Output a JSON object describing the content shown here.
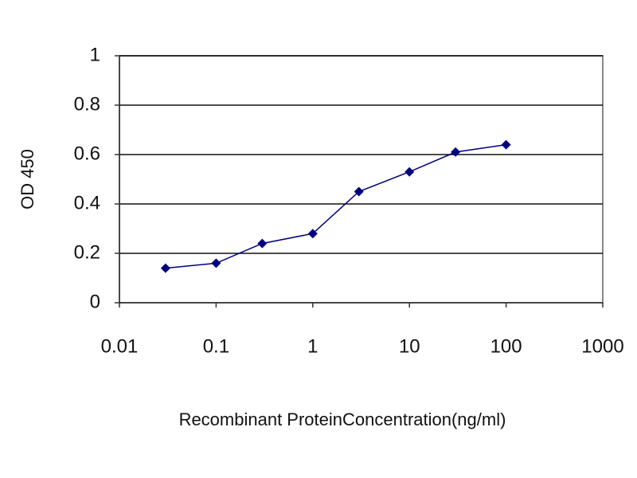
{
  "chart_data": {
    "type": "line",
    "x_label": "Recombinant ProteinConcentration(ng/ml)",
    "y_label": "OD 450",
    "x": [
      0.03,
      0.1,
      0.3,
      1,
      3,
      10,
      30,
      100
    ],
    "series": [
      {
        "name": "OD 450",
        "color": "#000080",
        "values": [
          0.14,
          0.16,
          0.24,
          0.28,
          0.45,
          0.53,
          0.61,
          0.64
        ]
      }
    ],
    "xlim": [
      0.01,
      1000
    ],
    "xticks": [
      0.01,
      0.1,
      1,
      10,
      100,
      1000
    ],
    "xscale": "log",
    "ylim": [
      0,
      1
    ],
    "yticks": [
      0,
      0.2,
      0.4,
      0.6,
      0.8,
      1
    ],
    "grid": true
  }
}
